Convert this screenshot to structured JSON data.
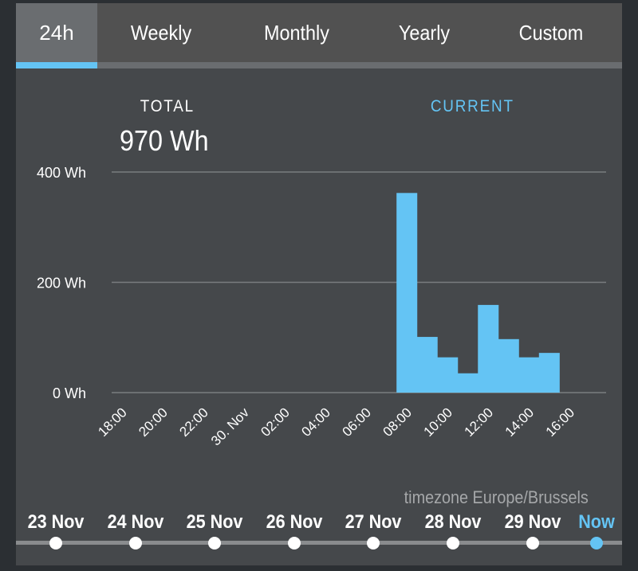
{
  "tabs": [
    {
      "label": "24h",
      "active": true
    },
    {
      "label": "Weekly"
    },
    {
      "label": "Monthly"
    },
    {
      "label": "Yearly"
    },
    {
      "label": "Custom"
    }
  ],
  "stats": {
    "total_label": "TOTAL",
    "total_value": "970 Wh",
    "current_label": "CURRENT"
  },
  "colors": {
    "accent": "#64c4f4",
    "panel": "#45484b",
    "tabbar": "#515151"
  },
  "chart_data": {
    "type": "bar",
    "title": "",
    "ylabel": "Wh",
    "ylim": [
      0,
      400
    ],
    "yticks": [
      {
        "value": 0,
        "label": "0 Wh"
      },
      {
        "value": 200,
        "label": "200 Wh"
      },
      {
        "value": 400,
        "label": "400 Wh"
      }
    ],
    "xrange_hours_from_1800": [
      0,
      24.3
    ],
    "xticks": [
      {
        "h": 0,
        "label": "18:00"
      },
      {
        "h": 2,
        "label": "20:00"
      },
      {
        "h": 4,
        "label": "22:00"
      },
      {
        "h": 6,
        "label": "30. Nov"
      },
      {
        "h": 8,
        "label": "02:00"
      },
      {
        "h": 10,
        "label": "04:00"
      },
      {
        "h": 12,
        "label": "06:00"
      },
      {
        "h": 14,
        "label": "08:00"
      },
      {
        "h": 16,
        "label": "10:00"
      },
      {
        "h": 18,
        "label": "12:00"
      },
      {
        "h": 20,
        "label": "14:00"
      },
      {
        "h": 22,
        "label": "16:00"
      }
    ],
    "categories": [
      "08:00",
      "09:00",
      "10:00",
      "11:00",
      "12:00",
      "13:00",
      "14:00",
      "15:00"
    ],
    "bar_start_hours_from_1800": [
      14,
      15,
      16,
      17,
      18,
      19,
      20,
      21
    ],
    "values": [
      362,
      101,
      64,
      35,
      159,
      97,
      64,
      72
    ]
  },
  "timezone": "timezone Europe/Brussels",
  "timeline": [
    {
      "label": "23 Nov"
    },
    {
      "label": "24 Nov"
    },
    {
      "label": "25 Nov"
    },
    {
      "label": "26 Nov"
    },
    {
      "label": "27 Nov"
    },
    {
      "label": "28 Nov"
    },
    {
      "label": "29 Nov"
    },
    {
      "label": "Now",
      "active": true
    }
  ]
}
